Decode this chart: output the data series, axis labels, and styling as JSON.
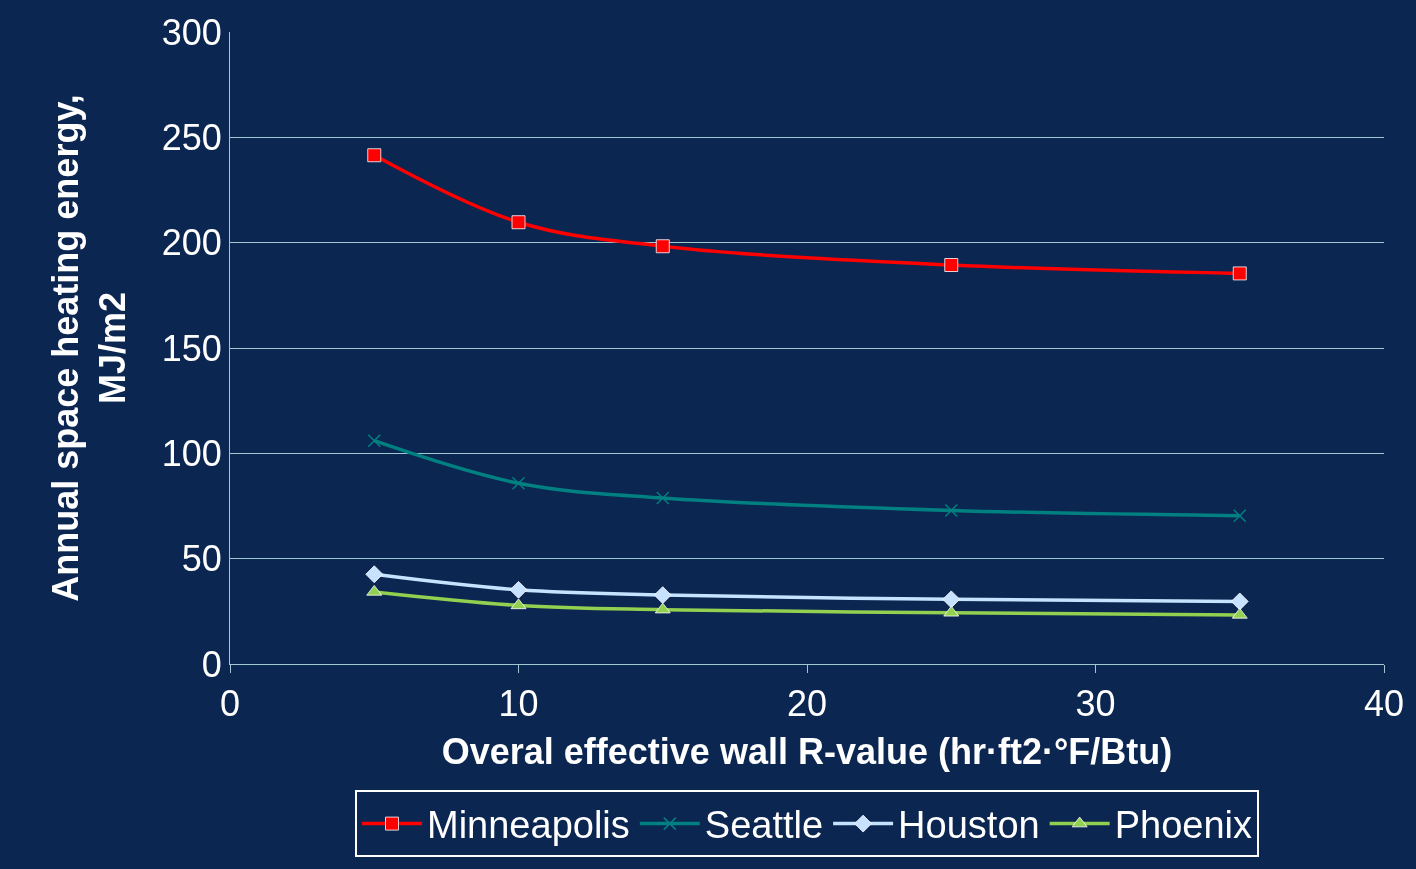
{
  "chart_data": {
    "type": "line",
    "xlabel": "Overal effective wall R-value (hr·ft2·°F/Btu)",
    "ylabel": "Annual space heating energy,\nMJ/m2",
    "x": [
      5,
      10,
      15,
      25,
      35
    ],
    "series": [
      {
        "name": "Minneapolis",
        "color": "#ff0000",
        "marker": "square",
        "values": [
          241.5,
          209.7,
          198.3,
          189.4,
          185.4
        ]
      },
      {
        "name": "Seattle",
        "color": "#008080",
        "marker": "cross",
        "values": [
          106,
          85.8,
          78.8,
          72.9,
          70.4
        ]
      },
      {
        "name": "Houston",
        "color": "#c6e2ff",
        "marker": "diamond",
        "values": [
          42.6,
          35.2,
          32.7,
          30.7,
          29.7
        ]
      },
      {
        "name": "Phoenix",
        "color": "#92d050",
        "marker": "triangle",
        "values": [
          34.2,
          27.8,
          25.8,
          24.3,
          23.3
        ]
      }
    ],
    "xlim": [
      0,
      40
    ],
    "xticks": [
      0,
      10,
      20,
      30,
      40
    ],
    "ylim": [
      0,
      300
    ],
    "yticks": [
      0,
      50,
      100,
      150,
      200,
      250,
      300
    ],
    "grid": "y",
    "legend": "bottom",
    "line_style": "solid"
  }
}
